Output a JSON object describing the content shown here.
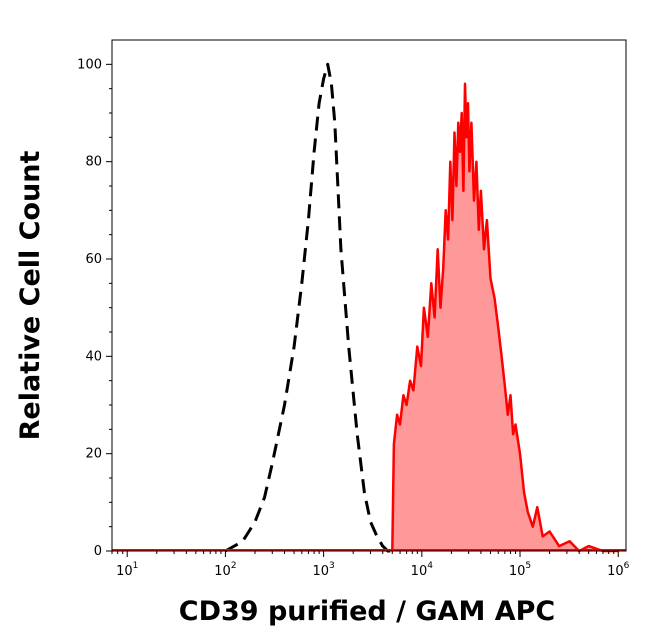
{
  "chart_data": {
    "type": "area",
    "title": "",
    "xlabel": "CD39 purified / GAM APC",
    "ylabel": "Relative Cell Count",
    "x_scale": "log",
    "xlim": [
      7,
      1200000
    ],
    "ylim": [
      0,
      105
    ],
    "x_ticks": [
      {
        "base": "10",
        "exp": "1",
        "value": 10
      },
      {
        "base": "10",
        "exp": "2",
        "value": 100
      },
      {
        "base": "10",
        "exp": "3",
        "value": 1000
      },
      {
        "base": "10",
        "exp": "4",
        "value": 10000
      },
      {
        "base": "10",
        "exp": "5",
        "value": 100000
      },
      {
        "base": "10",
        "exp": "6",
        "value": 1000000
      }
    ],
    "y_ticks": [
      "0",
      "20",
      "40",
      "60",
      "80",
      "100"
    ],
    "grid": false,
    "legend": "none",
    "series": [
      {
        "style": "dashed",
        "color": "#000000",
        "fill": "none",
        "x": [
          100,
          150,
          200,
          250,
          300,
          400,
          500,
          600,
          700,
          800,
          900,
          1000,
          1100,
          1200,
          1300,
          1500,
          1800,
          2200,
          2600,
          3000,
          3500,
          4000,
          4500,
          5000
        ],
        "y": [
          0,
          2,
          6,
          11,
          18,
          30,
          42,
          55,
          68,
          82,
          92,
          97,
          100,
          96,
          88,
          62,
          42,
          24,
          12,
          6,
          3,
          1,
          0,
          0
        ]
      },
      {
        "style": "solid",
        "color": "#ff0000",
        "fill": "#ff9999",
        "x": [
          5000,
          5200,
          5600,
          6000,
          6500,
          7000,
          7600,
          8200,
          9000,
          9800,
          10500,
          11500,
          12500,
          13500,
          14500,
          15500,
          16500,
          17500,
          18500,
          19500,
          20500,
          21500,
          22500,
          23500,
          24500,
          25500,
          26500,
          27500,
          28500,
          29500,
          30500,
          32000,
          34000,
          36000,
          38000,
          40000,
          43000,
          46000,
          50000,
          55000,
          60000,
          65000,
          70000,
          75000,
          80000,
          85000,
          90000,
          100000,
          110000,
          120000,
          135000,
          150000,
          170000,
          200000,
          250000,
          320000,
          400000,
          500000,
          700000,
          1000000
        ],
        "y": [
          0,
          22,
          28,
          26,
          32,
          30,
          35,
          33,
          42,
          38,
          50,
          44,
          55,
          48,
          62,
          50,
          58,
          70,
          64,
          80,
          68,
          86,
          75,
          88,
          82,
          90,
          74,
          96,
          85,
          92,
          78,
          88,
          72,
          80,
          66,
          74,
          62,
          68,
          56,
          52,
          46,
          40,
          34,
          28,
          32,
          24,
          26,
          20,
          12,
          8,
          5,
          9,
          3,
          4,
          1,
          2,
          0,
          1,
          0,
          0
        ]
      }
    ]
  }
}
